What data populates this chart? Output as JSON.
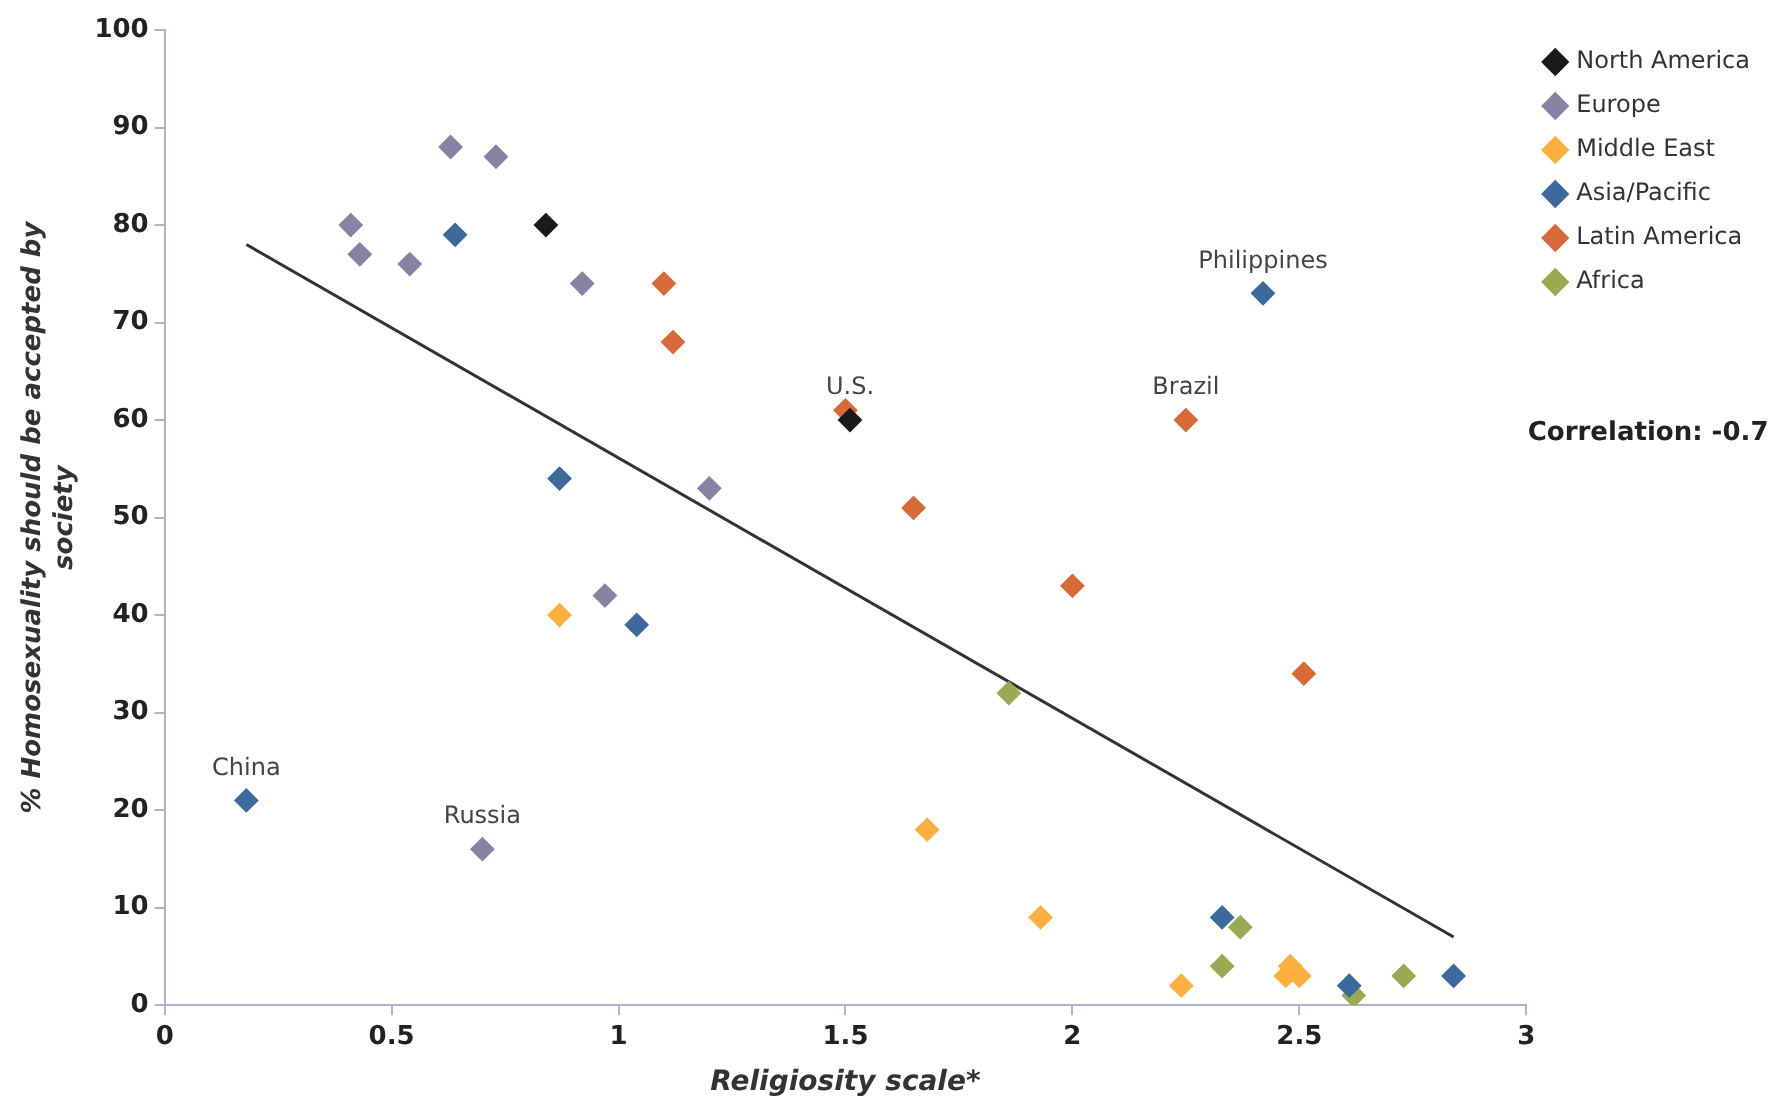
{
  "chart_data": {
    "type": "scatter",
    "xlabel": "Religiosity scale*",
    "ylabel": "% Homosexuality should be accepted by society",
    "xlim": [
      0,
      3
    ],
    "xticks": [
      0,
      0.5,
      1,
      1.5,
      2,
      2.5,
      3
    ],
    "ylim": [
      0,
      100
    ],
    "yticks": [
      0,
      10,
      20,
      30,
      40,
      50,
      60,
      70,
      80,
      90,
      100
    ],
    "grid": false,
    "legend": "top right",
    "marker": "diamond",
    "series": [
      {
        "name": "North America",
        "color": "#1a1a1a",
        "x": [
          0.84,
          1.51
        ],
        "values": [
          80,
          60
        ]
      },
      {
        "name": "Europe",
        "color": "#8a82a4",
        "x": [
          0.41,
          0.43,
          0.54,
          0.63,
          0.73,
          0.92,
          1.2,
          0.97,
          0.7
        ],
        "values": [
          80,
          77,
          76,
          88,
          87,
          74,
          53,
          42,
          16
        ]
      },
      {
        "name": "Middle East",
        "color": "#fbb040",
        "x": [
          0.87,
          1.68,
          1.93,
          2.24,
          2.47,
          2.48,
          2.5
        ],
        "values": [
          40,
          18,
          9,
          2,
          3,
          4,
          3
        ]
      },
      {
        "name": "Asia/Pacific",
        "color": "#3d6a9e",
        "x": [
          0.64,
          0.87,
          1.04,
          0.18,
          2.42,
          2.33,
          2.61,
          2.84
        ],
        "values": [
          79,
          54,
          39,
          21,
          73,
          9,
          2,
          3
        ]
      },
      {
        "name": "Latin America",
        "color": "#d86a38",
        "x": [
          1.1,
          1.12,
          1.5,
          1.65,
          2.0,
          2.25,
          2.51
        ],
        "values": [
          74,
          68,
          61,
          51,
          43,
          60,
          34
        ]
      },
      {
        "name": "Africa",
        "color": "#9aaa50",
        "x": [
          1.86,
          2.37,
          2.33,
          2.62,
          2.73
        ],
        "values": [
          32,
          8,
          4,
          1,
          3
        ]
      },
      {
        "type": "line",
        "color": "#333333",
        "x": [
          0.18,
          2.84
        ],
        "values": [
          78,
          7
        ],
        "marker": "none"
      }
    ],
    "annotations": [
      {
        "text": "China",
        "x": 0.18,
        "y": 21
      },
      {
        "text": "Russia",
        "x": 0.7,
        "y": 16
      },
      {
        "text": "U.S.",
        "x": 1.51,
        "y": 60
      },
      {
        "text": "Philippines",
        "x": 2.42,
        "y": 73
      },
      {
        "text": "Brazil",
        "x": 2.25,
        "y": 60
      },
      "Correlation: -0.7"
    ]
  }
}
